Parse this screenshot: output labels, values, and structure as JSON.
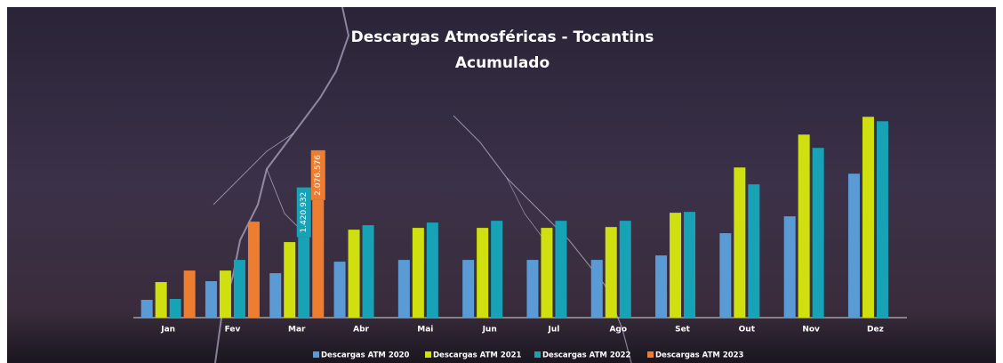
{
  "chart_data": {
    "type": "bar",
    "title": "Descargas Atmosféricas - Tocantins",
    "subtitle": "Acumulado",
    "categories": [
      "Jan",
      "Fev",
      "Mar",
      "Abr",
      "Mai",
      "Jun",
      "Jul",
      "Ago",
      "Set",
      "Out",
      "Nov",
      "Dez"
    ],
    "ylim": [
      0,
      3600000
    ],
    "legend": "bottom",
    "series": [
      {
        "name": "Descargas ATM 2020",
        "color": "#5b9bd5",
        "values": [
          314000,
          644000,
          785000,
          989000,
          1020000,
          1020000,
          1020000,
          1020000,
          1099000,
          1492000,
          1790000,
          2543000
        ]
      },
      {
        "name": "Descargas ATM 2021",
        "color": "#cfdf10",
        "values": [
          628000,
          832000,
          1335000,
          1554000,
          1586000,
          1586000,
          1586000,
          1601000,
          1853000,
          2653000,
          3234000,
          3548000
        ]
      },
      {
        "name": "Descargas ATM 2022",
        "color": "#17a2b6",
        "values": [
          330000,
          1020000,
          1420932,
          1633000,
          1680000,
          1711000,
          1711000,
          1711000,
          1868000,
          2355000,
          2999000,
          3470000
        ],
        "value_labels": [
          null,
          null,
          "1.420.932",
          null,
          null,
          null,
          null,
          null,
          null,
          null,
          null,
          null
        ]
      },
      {
        "name": "Descargas ATM 2023",
        "color": "#ed7d31",
        "values": [
          832000,
          1696000,
          2076576,
          null,
          null,
          null,
          null,
          null,
          null,
          null,
          null,
          null
        ],
        "value_labels": [
          null,
          null,
          "2.076.576",
          null,
          null,
          null,
          null,
          null,
          null,
          null,
          null,
          null
        ]
      }
    ]
  }
}
